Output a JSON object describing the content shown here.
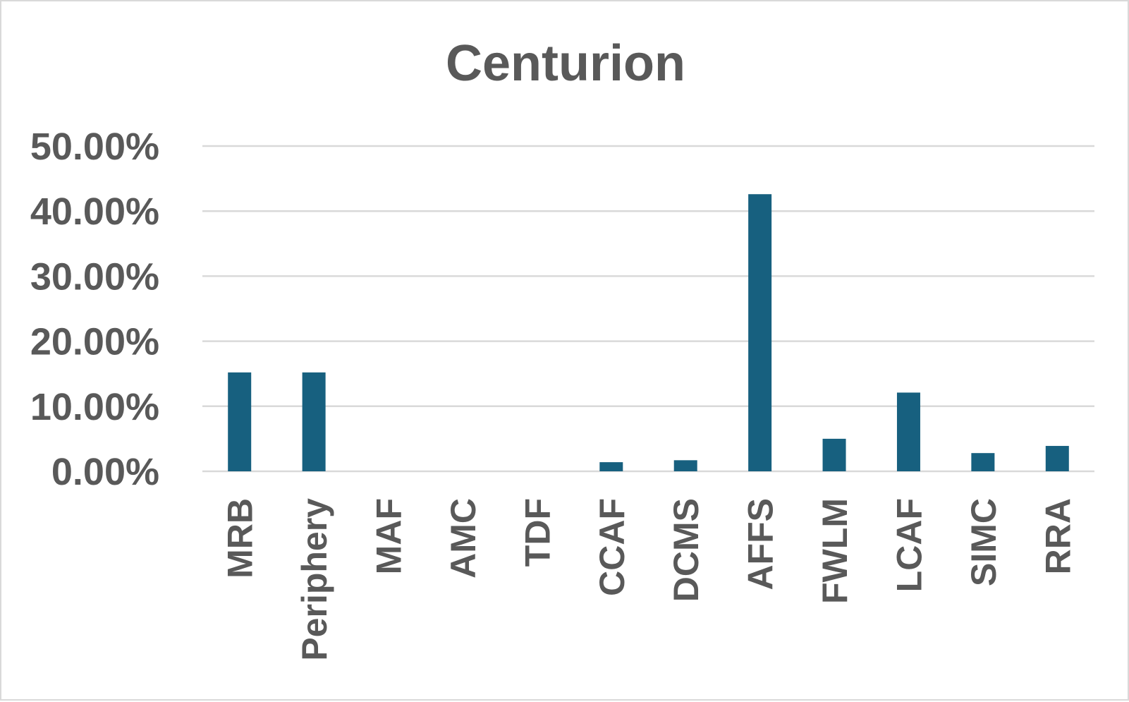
{
  "chart_data": {
    "type": "bar",
    "title": "Centurion",
    "xlabel": "",
    "ylabel": "",
    "categories": [
      "MRB",
      "Periphery",
      "MAF",
      "AMC",
      "TDF",
      "CCAF",
      "DCMS",
      "AFFS",
      "FWLM",
      "LCAF",
      "SIMC",
      "RRA"
    ],
    "values": [
      0.152,
      0.152,
      0.0,
      0.0,
      0.0,
      0.014,
      0.017,
      0.426,
      0.05,
      0.121,
      0.028,
      0.039
    ],
    "ylim": [
      0,
      0.5
    ],
    "yticks": [
      0,
      0.1,
      0.2,
      0.3,
      0.4,
      0.5
    ],
    "ytick_labels": [
      "0.00%",
      "10.00%",
      "20.00%",
      "30.00%",
      "40.00%",
      "50.00%"
    ],
    "grid": true,
    "legend": "none",
    "bar_color": "#17607f"
  }
}
